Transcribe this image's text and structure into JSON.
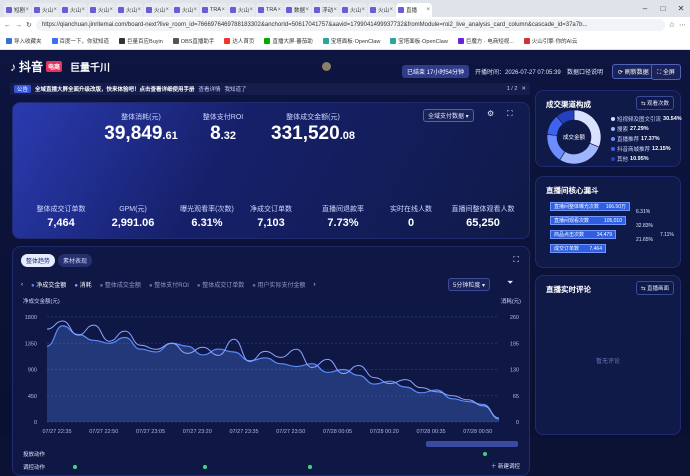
{
  "browser": {
    "tabs": [
      {
        "label": "短剧",
        "active": false
      },
      {
        "label": "火山",
        "active": false
      },
      {
        "label": "火山",
        "active": false
      },
      {
        "label": "火山",
        "active": false
      },
      {
        "label": "火山",
        "active": false
      },
      {
        "label": "火山",
        "active": false
      },
      {
        "label": "火山",
        "active": false
      },
      {
        "label": "TRA",
        "active": false
      },
      {
        "label": "火山",
        "active": false
      },
      {
        "label": "TRA",
        "active": false
      },
      {
        "label": "数据",
        "active": false
      },
      {
        "label": "浮动",
        "active": false
      },
      {
        "label": "火山",
        "active": false
      },
      {
        "label": "火山",
        "active": false
      },
      {
        "label": "直播",
        "active": true
      }
    ],
    "url": "https://qianchuan.jinritemai.com/board-next?live_room_id=7666976469788183302&anchorId=50617041757&aavid=1799041499937732&fromModule=roi2_live_analysis_card_column&cascade_id=37a7b...",
    "bookmarks": [
      "导入收藏夹",
      "百度一下，你就知道",
      "巨量百应Buyin",
      "OBS直播助手",
      "达人首页",
      "直播大屏·蕃茄助",
      "宝塔面板·OpenClaw",
      "宝塔面板·OpenClaw",
      "巨魔方 · 电商短视...",
      "火山引擎·你的AI云"
    ]
  },
  "nav": {
    "brand": "抖音",
    "brand_tag": "电商",
    "brand2": "巨量千川",
    "live_status": "已结束 17小时54分钟",
    "start_time_label": "开播时间：",
    "start_time": "2026-07-27 07:05:39",
    "data_delay": "数据口径说明",
    "refresh": "刷新数据",
    "fullscreen": "全屏"
  },
  "notice": {
    "label": "公告",
    "text": "全域直播大屏全面升级改版，快来体验吧！点击查看详细使用手册",
    "link1": "查看详情",
    "link2": "我知道了",
    "page": "1 / 2"
  },
  "kpi": {
    "select": "全域支付数据",
    "top": [
      {
        "label": "整体消耗(元)",
        "int": "39,849",
        "dec": ".61"
      },
      {
        "label": "整体支付ROI",
        "int": "8",
        "dec": ".32"
      },
      {
        "label": "整体成交金额(元)",
        "int": "331,520",
        "dec": ".08"
      }
    ],
    "bottom": [
      {
        "label": "整体成交订单数",
        "value": "7,464"
      },
      {
        "label": "GPM(元)",
        "value": "2,991.06"
      },
      {
        "label": "曝光观看率(次数)",
        "value": "6.31%"
      },
      {
        "label": "净成交订单数",
        "value": "7,103"
      },
      {
        "label": "直播间退款率",
        "value": "7.73%"
      },
      {
        "label": "实时在线人数",
        "value": "0"
      },
      {
        "label": "直播间整体观看人数",
        "value": "65,250"
      }
    ]
  },
  "trend": {
    "tabs": [
      "整体趋势",
      "素材表现"
    ],
    "metrics": [
      "净成交金额",
      "消耗",
      "整体成交金额",
      "整体支付ROI",
      "整体成交订单数",
      "用户实际支付金额"
    ],
    "granularity": "5分钟粒度",
    "left_axis_label": "净成交金额(元)",
    "right_axis_label": "消耗(元)",
    "row1": "投放动作",
    "row2": "调控动作",
    "new_action": "新建调控"
  },
  "chart_data": {
    "type": "line",
    "x": [
      "07/27 22:35",
      "07/27 22:40",
      "07/27 22:45",
      "07/27 22:50",
      "07/27 22:55",
      "07/27 23:00",
      "07/27 23:05",
      "07/27 23:10",
      "07/27 23:15",
      "07/27 23:20",
      "07/27 23:25",
      "07/27 23:30",
      "07/27 23:35",
      "07/27 23:40",
      "07/27 23:45",
      "07/27 23:50",
      "07/27 23:55",
      "07/28 00:00",
      "07/28 00:05",
      "07/28 00:10",
      "07/28 00:15",
      "07/28 00:20",
      "07/28 00:25",
      "07/28 00:30",
      "07/28 00:35",
      "07/28 00:40",
      "07/28 00:45",
      "07/28 00:50",
      "07/28 00:55",
      "07/28 01:00"
    ],
    "xticks": [
      "07/27 22:35",
      "07/27 22:50",
      "07/27 23:05",
      "07/27 23:20",
      "07/27 23:35",
      "07/27 23:50",
      "07/28 00:05",
      "07/28 00:20",
      "07/28 00:35",
      "07/28 00:50"
    ],
    "series": [
      {
        "name": "净成交金额",
        "axis": "left",
        "color": "#5b8cff",
        "values": [
          1300,
          1650,
          1500,
          1400,
          1350,
          1450,
          1250,
          1200,
          1350,
          1300,
          1150,
          1250,
          1200,
          1050,
          1100,
          1000,
          950,
          1000,
          850,
          900,
          800,
          650,
          700,
          600,
          500,
          550,
          400,
          350,
          300,
          50
        ]
      },
      {
        "name": "消耗",
        "axis": "right",
        "color": "#8da6ff",
        "values": [
          230,
          250,
          215,
          240,
          200,
          225,
          190,
          180,
          195,
          170,
          185,
          165,
          205,
          150,
          175,
          160,
          180,
          135,
          155,
          120,
          140,
          110,
          95,
          105,
          85,
          75,
          65,
          55,
          40,
          10
        ]
      }
    ],
    "ylim_left": [
      0,
      1800
    ],
    "yticks_left": [
      "1800",
      "1350",
      "900",
      "450",
      "0"
    ],
    "ylim_right": [
      0,
      260
    ],
    "yticks_right": [
      "260",
      "195",
      "130",
      "65",
      "0"
    ]
  },
  "deal": {
    "title": "成交渠道构成",
    "btn": "观看次数",
    "center": "成交金额",
    "legend": [
      {
        "label": "短视频及图文引流",
        "value": "30.54%",
        "color": "#d8e2ff"
      },
      {
        "label": "搜索",
        "value": "27.29%",
        "color": "#9fb6ff"
      },
      {
        "label": "直播推荐",
        "value": "17.37%",
        "color": "#6d8cff"
      },
      {
        "label": "抖音商城推荐",
        "value": "12.15%",
        "color": "#3f63f0"
      },
      {
        "label": "其他",
        "value": "10.95%",
        "color": "#2440c0"
      }
    ],
    "shares": [
      30.54,
      27.29,
      17.37,
      12.15,
      10.95
    ]
  },
  "funnel": {
    "title": "直播间核心漏斗",
    "bars": [
      {
        "label": "直播间整体曝光次数",
        "value": "166.50万"
      },
      {
        "label": "直播间观看次数",
        "value": "105,010"
      },
      {
        "label": "商品点击次数",
        "value": "34,479"
      },
      {
        "label": "成交订单数",
        "value": "7,464"
      }
    ],
    "rates": [
      "6.31%",
      "32.83%",
      "21.65%",
      "7.11%"
    ]
  },
  "comments": {
    "title": "直播实时评论",
    "btn": "直播画面",
    "empty": "暂无评论"
  }
}
